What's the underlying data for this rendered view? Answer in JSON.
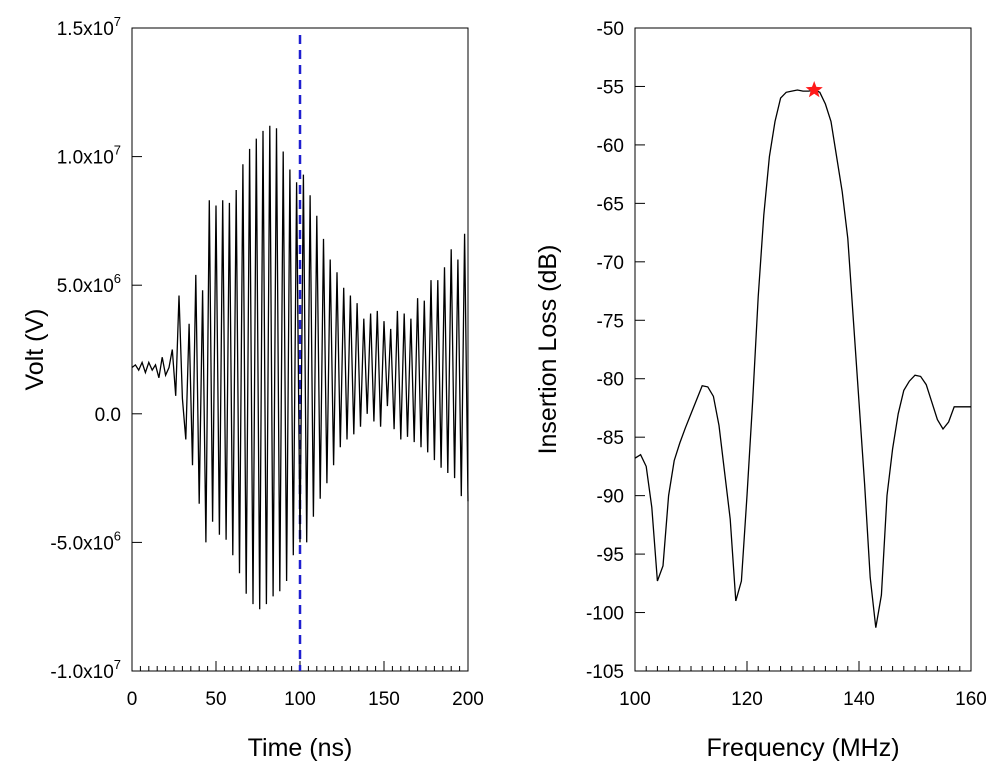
{
  "chart_data": [
    {
      "type": "line",
      "xlabel": "Time (ns)",
      "ylabel": "Volt (V)",
      "xlim": [
        0,
        200
      ],
      "ylim": [
        -10000000,
        15000000
      ],
      "x_ticks": [
        0,
        50,
        100,
        150,
        200
      ],
      "x_tick_labels": [
        "0",
        "50",
        "100",
        "150",
        "200"
      ],
      "y_ticks": [
        {
          "value": 15000000,
          "mantissa": "1.5x10",
          "exp": "7"
        },
        {
          "value": 10000000,
          "mantissa": "1.0x10",
          "exp": "7"
        },
        {
          "value": 5000000,
          "mantissa": "5.0x10",
          "exp": "6"
        },
        {
          "value": 0,
          "mantissa": "0.0",
          "exp": ""
        },
        {
          "value": -5000000,
          "mantissa": "-5.0x10",
          "exp": "6"
        },
        {
          "value": -10000000,
          "mantissa": "-1.0x10",
          "exp": "7"
        }
      ],
      "grid": false,
      "series": [
        {
          "name": "Volt",
          "color": "#000000",
          "x": [
            0,
            2,
            4,
            6,
            8,
            10,
            12,
            14,
            16,
            18,
            20,
            22,
            24,
            26,
            28,
            30,
            32,
            34,
            36,
            38,
            40,
            42,
            44,
            46,
            48,
            50,
            52,
            54,
            56,
            58,
            60,
            62,
            64,
            66,
            68,
            70,
            72,
            74,
            76,
            78,
            80,
            82,
            84,
            86,
            88,
            90,
            92,
            94,
            96,
            98,
            100,
            102,
            104,
            106,
            108,
            110,
            112,
            114,
            116,
            118,
            120,
            122,
            124,
            126,
            128,
            130,
            132,
            134,
            136,
            138,
            140,
            142,
            144,
            146,
            148,
            150,
            152,
            154,
            156,
            158,
            160,
            162,
            164,
            166,
            168,
            170,
            172,
            174,
            176,
            178,
            180,
            182,
            184,
            186,
            188,
            190,
            192,
            194,
            196,
            198,
            200
          ],
          "y": [
            1800000,
            1900000,
            1700000,
            2000000,
            1600000,
            2000000,
            1700000,
            1900000,
            1400000,
            2200000,
            1500000,
            1800000,
            2500000,
            700000,
            4600000,
            600000,
            -1000000,
            3500000,
            -2000000,
            5400000,
            -3500000,
            4800000,
            -5000000,
            8300000,
            -4200000,
            8100000,
            -4700000,
            8300000,
            -4900000,
            8200000,
            -5500000,
            8700000,
            -6200000,
            9700000,
            -7000000,
            10300000,
            -7400000,
            10700000,
            -7600000,
            11000000,
            -7400000,
            11200000,
            -7100000,
            11100000,
            -6900000,
            10200000,
            -6500000,
            9500000,
            -5500000,
            9000000,
            -5000000,
            9300000,
            -5000000,
            8500000,
            -4000000,
            7700000,
            -3300000,
            6800000,
            -2700000,
            6000000,
            -2000000,
            5500000,
            -1300000,
            4900000,
            -1000000,
            4600000,
            -800000,
            4300000,
            -500000,
            3700000,
            0,
            3900000,
            -300000,
            4000000,
            -500000,
            3600000,
            300000,
            3300000,
            -600000,
            4000000,
            -1000000,
            3900000,
            -900000,
            3700000,
            -1100000,
            4500000,
            -1300000,
            4400000,
            -1500000,
            5200000,
            -1800000,
            5200000,
            -2100000,
            5700000,
            -2300000,
            6400000,
            -2500000,
            6000000,
            -3200000,
            7000000,
            -3400000
          ]
        }
      ],
      "marker_line": {
        "x": 100,
        "color": "#1f1fd0",
        "style": "dashed"
      }
    },
    {
      "type": "line",
      "xlabel": "Frequency (MHz)",
      "ylabel": "Insertion Loss (dB)",
      "xlim": [
        100,
        160
      ],
      "ylim": [
        -105,
        -50
      ],
      "x_ticks": [
        100,
        120,
        140,
        160
      ],
      "x_tick_labels": [
        "100",
        "120",
        "140",
        "160"
      ],
      "y_ticks": [
        -50,
        -55,
        -60,
        -65,
        -70,
        -75,
        -80,
        -85,
        -90,
        -95,
        -100,
        -105
      ],
      "y_tick_labels": [
        "-50",
        "-55",
        "-60",
        "-65",
        "-70",
        "-75",
        "-80",
        "-85",
        "-90",
        "-95",
        "-100",
        "-105"
      ],
      "grid": false,
      "series": [
        {
          "name": "Insertion Loss",
          "color": "#000000",
          "x": [
            100,
            101,
            102,
            103,
            104,
            105,
            106,
            107,
            108,
            109,
            110,
            111,
            112,
            113,
            114,
            115,
            116,
            117,
            118,
            119,
            120,
            121,
            122,
            123,
            124,
            125,
            126,
            127,
            128,
            129,
            130,
            131,
            132,
            133,
            134,
            135,
            136,
            137,
            138,
            139,
            140,
            141,
            142,
            143,
            144,
            145,
            146,
            147,
            148,
            149,
            150,
            151,
            152,
            153,
            154,
            155,
            156,
            157,
            158,
            159,
            160
          ],
          "y": [
            -86.8,
            -86.5,
            -87.5,
            -91,
            -97.3,
            -96,
            -90,
            -87,
            -85.5,
            -84.2,
            -83,
            -81.8,
            -80.6,
            -80.7,
            -81.5,
            -84,
            -88,
            -92,
            -99,
            -97.3,
            -90,
            -82,
            -73,
            -66,
            -61,
            -58,
            -56,
            -55.5,
            -55.4,
            -55.3,
            -55.4,
            -55.4,
            -55.3,
            -55.5,
            -56.5,
            -58,
            -61,
            -64,
            -68,
            -75,
            -82,
            -89,
            -97,
            -101.3,
            -98.5,
            -90,
            -86,
            -83,
            -81,
            -80.2,
            -79.7,
            -79.8,
            -80.5,
            -82,
            -83.5,
            -84.3,
            -83.7,
            -82.4,
            -82.4,
            -82.4,
            -82.4
          ]
        }
      ],
      "peak_marker": {
        "x": 132,
        "y": -55.3,
        "color": "#ff1a1a",
        "shape": "star"
      }
    }
  ]
}
